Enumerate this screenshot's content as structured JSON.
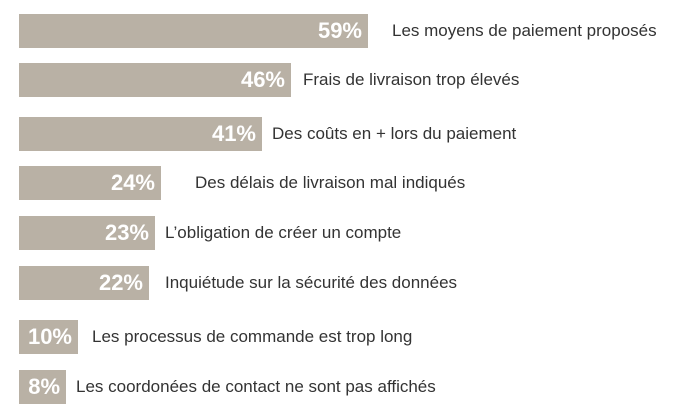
{
  "colors": {
    "bar": "#b9b1a5",
    "value_text": "#ffffff",
    "label_text": "#333333",
    "background": "#ffffff"
  },
  "chart_data": {
    "type": "bar",
    "orientation": "horizontal",
    "title": "",
    "xlabel": "",
    "ylabel": "",
    "xlim": [
      0,
      59
    ],
    "grid": false,
    "legend": "none",
    "categories": [
      "Les moyens de paiement proposés",
      "Frais de livraison trop élevés",
      "Des coûts en + lors du paiement",
      "Des délais de livraison mal indiqués",
      "L’obligation de créer un compte",
      "Inquiétude sur la sécurité des données",
      "Les processus de commande est trop long",
      "Les coordonées de contact ne sont pas affichés"
    ],
    "values": [
      59,
      46,
      41,
      24,
      23,
      22,
      10,
      8
    ],
    "value_labels": [
      "59%",
      "46%",
      "41%",
      "24%",
      "23%",
      "22%",
      "10%",
      "8%"
    ]
  }
}
